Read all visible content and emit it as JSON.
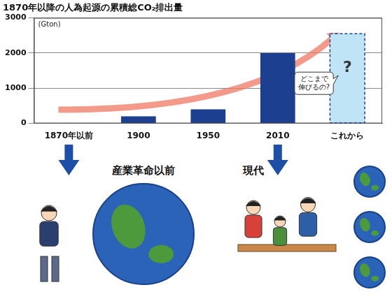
{
  "chart_data": {
    "type": "bar",
    "title": "1870年以降の人為起源の累積総CO₂排出量",
    "ylabel": "(Gton)",
    "categories": [
      "1870年以前",
      "1900",
      "1950",
      "2010",
      "これから"
    ],
    "values": [
      0,
      200,
      400,
      2000,
      2550
    ],
    "colors": [
      "#1c3f8f",
      "#1c3f8f",
      "#1c3f8f",
      "#1c3f8f",
      "#bfe4f6"
    ],
    "ylim": [
      0,
      3000
    ],
    "yticks": [
      0,
      1000,
      2000,
      3000
    ],
    "grid": true,
    "annotations": [
      {
        "text": "?",
        "category": "これから"
      },
      {
        "text": "どこまで伸びるの?",
        "category": "これから"
      }
    ]
  },
  "captions": [
    {
      "text": "産業革命以前",
      "category": "1870年以前"
    },
    {
      "text": "現代",
      "category": "2010"
    }
  ]
}
